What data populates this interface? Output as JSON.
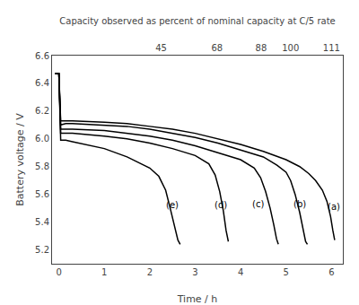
{
  "chart_data": {
    "type": "line",
    "title": "Capacity observed as percent of nominal capacity at C/5 rate",
    "xlabel": "Time / h",
    "ylabel": "Battery voltage / V",
    "xlim": [
      -0.15,
      6.25
    ],
    "ylim": [
      5.1,
      6.6
    ],
    "xticks": [
      0,
      1,
      2,
      3,
      4,
      5,
      6
    ],
    "yticks": [
      5.2,
      5.4,
      5.6,
      5.8,
      {
        "value": 6.0,
        "label": "6.0"
      },
      6.2,
      6.4,
      6.6
    ],
    "x2lim": [
      -0.15,
      6.25
    ],
    "x2ticks": [
      {
        "value": 2.25,
        "label": "45"
      },
      {
        "value": 3.48,
        "label": "68"
      },
      {
        "value": 4.45,
        "label": "88"
      },
      {
        "value": 5.1,
        "label": "100"
      },
      {
        "value": 6.0,
        "label": "111"
      }
    ],
    "grid": false,
    "series": [
      {
        "color": "#000000",
        "x": [
          -0.08,
          0.0,
          0.04,
          0.15,
          0.3,
          1.0,
          1.5,
          2.0,
          2.5,
          3.0,
          3.5,
          4.0,
          4.5,
          5.0,
          5.3,
          5.5,
          5.65,
          5.8,
          5.9,
          5.98,
          6.03,
          6.07
        ],
        "values": [
          6.47,
          6.47,
          6.13,
          6.13,
          6.13,
          6.12,
          6.11,
          6.09,
          6.07,
          6.04,
          6.0,
          5.96,
          5.91,
          5.85,
          5.8,
          5.75,
          5.7,
          5.63,
          5.55,
          5.44,
          5.34,
          5.27
        ]
      },
      {
        "color": "#000000",
        "x": [
          -0.08,
          0.0,
          0.04,
          0.15,
          0.3,
          1.0,
          1.5,
          2.0,
          2.5,
          3.0,
          3.5,
          4.0,
          4.5,
          4.8,
          5.0,
          5.1,
          5.2,
          5.3,
          5.38,
          5.43,
          5.47
        ],
        "values": [
          6.47,
          6.47,
          6.1,
          6.11,
          6.11,
          6.1,
          6.09,
          6.07,
          6.04,
          6.01,
          5.97,
          5.92,
          5.87,
          5.81,
          5.76,
          5.7,
          5.6,
          5.47,
          5.35,
          5.26,
          5.24
        ]
      },
      {
        "color": "#000000",
        "x": [
          -0.08,
          0.0,
          0.04,
          0.15,
          0.3,
          1.0,
          1.5,
          2.0,
          2.5,
          3.0,
          3.5,
          4.0,
          4.3,
          4.44,
          4.55,
          4.65,
          4.73,
          4.79,
          4.83
        ],
        "values": [
          6.47,
          6.47,
          6.07,
          6.07,
          6.07,
          6.06,
          6.04,
          6.02,
          5.99,
          5.95,
          5.9,
          5.85,
          5.79,
          5.72,
          5.62,
          5.5,
          5.38,
          5.28,
          5.24
        ]
      },
      {
        "color": "#000000",
        "x": [
          -0.08,
          0.0,
          0.04,
          0.15,
          0.3,
          1.0,
          1.5,
          2.0,
          2.5,
          3.0,
          3.3,
          3.44,
          3.54,
          3.62,
          3.68,
          3.73
        ],
        "values": [
          6.47,
          6.47,
          6.04,
          6.04,
          6.04,
          6.02,
          6.0,
          5.97,
          5.93,
          5.88,
          5.82,
          5.74,
          5.62,
          5.48,
          5.34,
          5.26
        ]
      },
      {
        "color": "#000000",
        "x": [
          -0.08,
          0.0,
          0.04,
          0.15,
          0.3,
          1.0,
          1.5,
          2.0,
          2.2,
          2.35,
          2.45,
          2.55,
          2.62,
          2.67
        ],
        "values": [
          6.47,
          6.47,
          5.99,
          5.99,
          5.98,
          5.93,
          5.87,
          5.79,
          5.73,
          5.63,
          5.5,
          5.37,
          5.27,
          5.24
        ]
      }
    ],
    "annotations": [
      {
        "text": "(a)",
        "x": 5.87,
        "y": 5.56
      },
      {
        "text": "(b)",
        "x": 5.12,
        "y": 5.58
      },
      {
        "text": "(c)",
        "x": 4.22,
        "y": 5.58
      },
      {
        "text": "(d)",
        "x": 3.38,
        "y": 5.57
      },
      {
        "text": "(e)",
        "x": 2.32,
        "y": 5.57
      }
    ]
  }
}
